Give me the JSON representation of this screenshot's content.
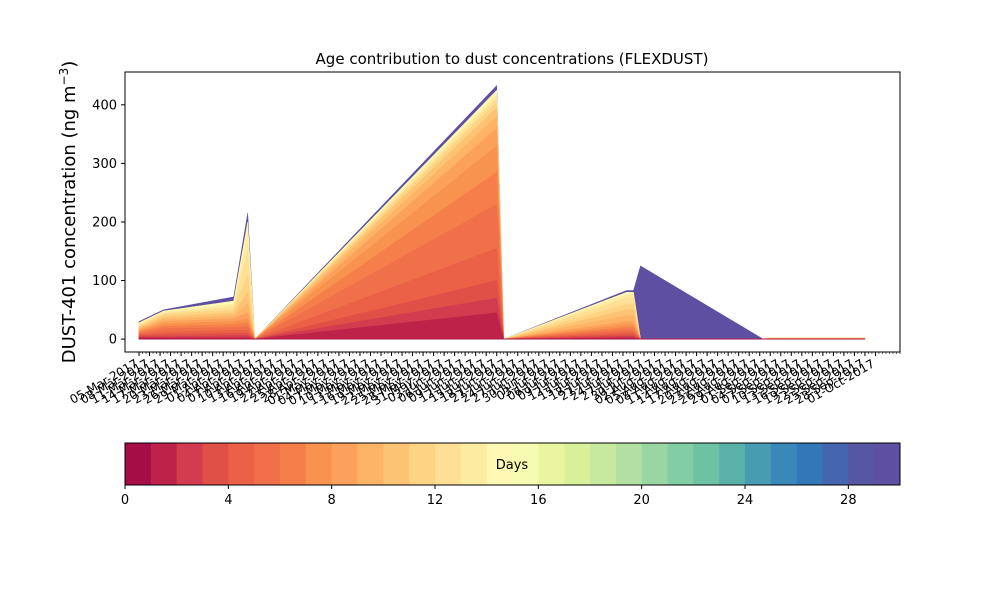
{
  "chart_data": {
    "type": "area",
    "title": "Age contribution to dust concentrations (FLEXDUST)",
    "ylabel": "DUST-401 concentration (ng m",
    "ylabel_sup": "−3",
    "ylabel_close": ")",
    "ylim": [
      -22,
      456
    ],
    "yticks": [
      0,
      100,
      200,
      300,
      400
    ],
    "grid": false,
    "stacking": "stacked by age bin (days 0–30), cumulative totals listed below",
    "age_bins": 30,
    "colormap": "Spectral",
    "x_dates": [
      "2017-03-05",
      "2017-03-12",
      "2017-04-01",
      "2017-04-05",
      "2017-04-07",
      "2017-06-15",
      "2017-06-17",
      "2017-07-22",
      "2017-07-24",
      "2017-07-26",
      "2017-08-30",
      "2017-08-31",
      "2017-09-01",
      "2017-09-28"
    ],
    "x_tick_labels": [
      "05-Mar-2017",
      "08-Mar-2017",
      "11-Mar-2017",
      "14-Mar-2017",
      "17-Mar-2017",
      "20-Mar-2017",
      "23-Mar-2017",
      "26-Mar-2017",
      "29-Mar-2017",
      "01-Apr-2017",
      "04-Apr-2017",
      "07-Apr-2017",
      "10-Apr-2017",
      "13-Apr-2017",
      "16-Apr-2017",
      "19-Apr-2017",
      "22-Apr-2017",
      "25-Apr-2017",
      "28-Apr-2017",
      "01-May-2017",
      "04-May-2017",
      "07-May-2017",
      "10-May-2017",
      "13-May-2017",
      "16-May-2017",
      "19-May-2017",
      "22-May-2017",
      "25-May-2017",
      "28-May-2017",
      "31-May-2017",
      "03-Jun-2017",
      "06-Jun-2017",
      "09-Jun-2017",
      "12-Jun-2017",
      "15-Jun-2017",
      "18-Jun-2017",
      "21-Jun-2017",
      "24-Jun-2017",
      "27-Jun-2017",
      "30-Jun-2017",
      "03-Jul-2017",
      "06-Jul-2017",
      "09-Jul-2017",
      "12-Jul-2017",
      "15-Jul-2017",
      "18-Jul-2017",
      "21-Jul-2017",
      "24-Jul-2017",
      "27-Jul-2017",
      "30-Jul-2017",
      "02-Aug-2017",
      "05-Aug-2017",
      "08-Aug-2017",
      "11-Aug-2017",
      "14-Aug-2017",
      "17-Aug-2017",
      "20-Aug-2017",
      "23-Aug-2017",
      "26-Aug-2017",
      "29-Aug-2017",
      "01-Sep-2017",
      "04-Sep-2017",
      "07-Sep-2017",
      "10-Sep-2017",
      "13-Sep-2017",
      "16-Sep-2017",
      "19-Sep-2017",
      "22-Sep-2017",
      "25-Sep-2017",
      "28-Sep-2017",
      "01-Oct-2017"
    ],
    "cumulative_series": [
      {
        "up_to_day": 1,
        "values": [
          0,
          0,
          0,
          0,
          0,
          0,
          0,
          0,
          0,
          0,
          0,
          0,
          0,
          0
        ]
      },
      {
        "up_to_day": 2,
        "values": [
          2,
          2,
          2,
          2,
          0,
          45,
          0,
          2,
          2,
          0,
          0,
          0,
          0,
          0
        ]
      },
      {
        "up_to_day": 3,
        "values": [
          4,
          4,
          6,
          6,
          0,
          70,
          0,
          5,
          5,
          0,
          0,
          0,
          0,
          0
        ]
      },
      {
        "up_to_day": 4,
        "values": [
          6,
          8,
          10,
          10,
          0,
          100,
          0,
          8,
          8,
          0,
          0,
          0,
          0,
          0
        ]
      },
      {
        "up_to_day": 5,
        "values": [
          8,
          12,
          15,
          15,
          0,
          155,
          0,
          12,
          12,
          0,
          0,
          0,
          0,
          0
        ]
      },
      {
        "up_to_day": 6,
        "values": [
          10,
          18,
          20,
          22,
          0,
          230,
          0,
          16,
          16,
          0,
          0,
          0,
          0,
          0
        ]
      },
      {
        "up_to_day": 7,
        "values": [
          12,
          22,
          25,
          28,
          0,
          285,
          0,
          20,
          20,
          0,
          0,
          0,
          0,
          0
        ]
      },
      {
        "up_to_day": 8,
        "values": [
          14,
          26,
          30,
          35,
          0,
          330,
          0,
          25,
          25,
          0,
          0,
          1,
          1,
          1
        ]
      },
      {
        "up_to_day": 9,
        "values": [
          16,
          30,
          35,
          45,
          0,
          360,
          0,
          30,
          30,
          0,
          0,
          1,
          1,
          1
        ]
      },
      {
        "up_to_day": 10,
        "values": [
          18,
          34,
          40,
          60,
          0,
          380,
          0,
          40,
          40,
          0,
          0,
          1,
          1,
          1
        ]
      },
      {
        "up_to_day": 11,
        "values": [
          20,
          38,
          45,
          80,
          0,
          395,
          0,
          50,
          50,
          0,
          0,
          1,
          1,
          1
        ]
      },
      {
        "up_to_day": 12,
        "values": [
          22,
          42,
          50,
          110,
          0,
          405,
          0,
          60,
          60,
          0,
          0,
          2,
          2,
          2
        ]
      },
      {
        "up_to_day": 13,
        "values": [
          24,
          44,
          55,
          150,
          0,
          412,
          0,
          70,
          70,
          0,
          0,
          2,
          2,
          2
        ]
      },
      {
        "up_to_day": 14,
        "values": [
          26,
          46,
          60,
          180,
          0,
          418,
          0,
          76,
          76,
          0,
          0,
          2,
          2,
          2
        ]
      },
      {
        "up_to_day": 15,
        "values": [
          28,
          48,
          65,
          200,
          0,
          425,
          0,
          80,
          80,
          0,
          0,
          2,
          2,
          2
        ]
      },
      {
        "up_to_day": 30,
        "values": [
          30,
          50,
          72,
          215,
          0,
          433,
          0,
          83,
          83,
          125,
          0,
          2,
          2,
          2
        ]
      }
    ]
  },
  "colorbar": {
    "label": "Days",
    "ticks": [
      "0",
      "4",
      "8",
      "12",
      "16",
      "20",
      "24",
      "28"
    ],
    "range": [
      0,
      30
    ],
    "colors": [
      "#a40d46",
      "#be2249",
      "#d33c4e",
      "#e05046",
      "#eb6147",
      "#f0704a",
      "#f67e4b",
      "#f8924f",
      "#fca15b",
      "#fdb466",
      "#fdc375",
      "#fdd384",
      "#fde096",
      "#fdec9f",
      "#fef8b4",
      "#f6fbb2",
      "#eaf69f",
      "#d9f09b",
      "#c7e99e",
      "#b2e0a2",
      "#9ad6a4",
      "#83cda5",
      "#6ec2a4",
      "#5ab1a9",
      "#489cb2",
      "#3a88b9",
      "#3377b8",
      "#4566ae",
      "#5756a5",
      "#5e4fa2"
    ]
  }
}
